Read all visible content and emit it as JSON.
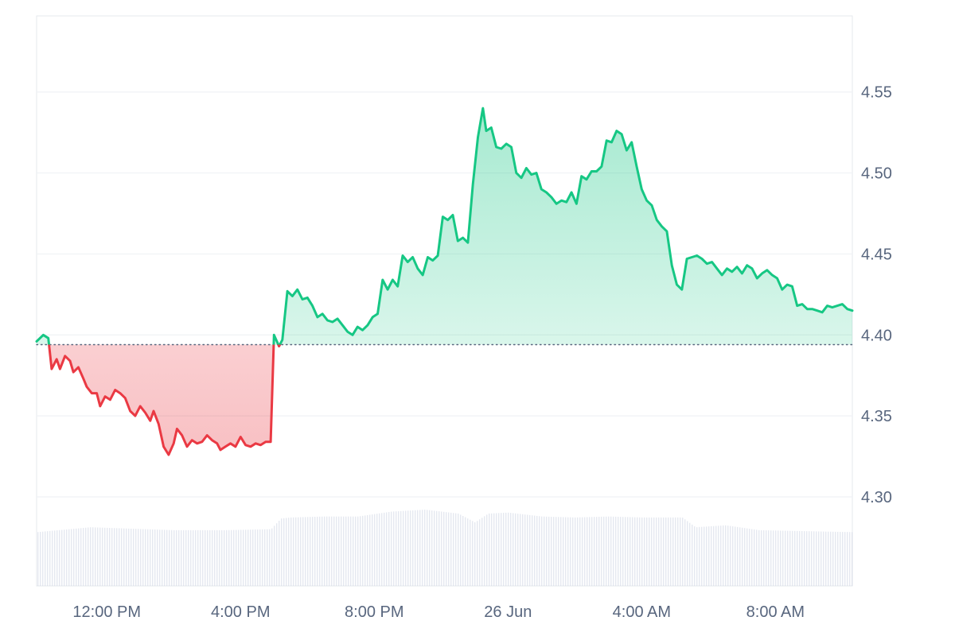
{
  "chart_data": {
    "type": "area",
    "baseline": 4.394,
    "ylim": [
      4.245,
      4.597
    ],
    "y_ticks": [
      {
        "value": 4.3,
        "label": "4.30"
      },
      {
        "value": 4.35,
        "label": "4.35"
      },
      {
        "value": 4.4,
        "label": "4.40"
      },
      {
        "value": 4.45,
        "label": "4.45"
      },
      {
        "value": 4.5,
        "label": "4.50"
      },
      {
        "value": 4.55,
        "label": "4.55"
      }
    ],
    "x_range_hours": [
      9.9,
      34.3
    ],
    "x_ticks": [
      {
        "hour": 12,
        "label": "12:00 PM"
      },
      {
        "hour": 16,
        "label": "4:00 PM"
      },
      {
        "hour": 20,
        "label": "8:00 PM"
      },
      {
        "hour": 24,
        "label": "26 Jun"
      },
      {
        "hour": 28,
        "label": "4:00 AM"
      },
      {
        "hour": 32,
        "label": "8:00 AM"
      }
    ],
    "price_points": [
      [
        9.9,
        4.396
      ],
      [
        10.1,
        4.4
      ],
      [
        10.25,
        4.398
      ],
      [
        10.35,
        4.379
      ],
      [
        10.5,
        4.385
      ],
      [
        10.6,
        4.379
      ],
      [
        10.75,
        4.387
      ],
      [
        10.9,
        4.384
      ],
      [
        11.0,
        4.377
      ],
      [
        11.15,
        4.38
      ],
      [
        11.3,
        4.373
      ],
      [
        11.4,
        4.368
      ],
      [
        11.55,
        4.364
      ],
      [
        11.7,
        4.364
      ],
      [
        11.8,
        4.356
      ],
      [
        11.95,
        4.362
      ],
      [
        12.1,
        4.36
      ],
      [
        12.25,
        4.366
      ],
      [
        12.4,
        4.364
      ],
      [
        12.55,
        4.361
      ],
      [
        12.7,
        4.353
      ],
      [
        12.85,
        4.35
      ],
      [
        13.0,
        4.356
      ],
      [
        13.15,
        4.352
      ],
      [
        13.3,
        4.347
      ],
      [
        13.4,
        4.353
      ],
      [
        13.55,
        4.345
      ],
      [
        13.7,
        4.331
      ],
      [
        13.85,
        4.326
      ],
      [
        14.0,
        4.333
      ],
      [
        14.1,
        4.342
      ],
      [
        14.25,
        4.338
      ],
      [
        14.4,
        4.331
      ],
      [
        14.55,
        4.335
      ],
      [
        14.7,
        4.333
      ],
      [
        14.85,
        4.334
      ],
      [
        15.0,
        4.338
      ],
      [
        15.15,
        4.335
      ],
      [
        15.3,
        4.333
      ],
      [
        15.4,
        4.329
      ],
      [
        15.55,
        4.331
      ],
      [
        15.7,
        4.333
      ],
      [
        15.85,
        4.331
      ],
      [
        16.0,
        4.337
      ],
      [
        16.15,
        4.332
      ],
      [
        16.3,
        4.331
      ],
      [
        16.45,
        4.333
      ],
      [
        16.6,
        4.332
      ],
      [
        16.75,
        4.334
      ],
      [
        16.9,
        4.334
      ],
      [
        17.0,
        4.4
      ],
      [
        17.15,
        4.393
      ],
      [
        17.25,
        4.397
      ],
      [
        17.4,
        4.427
      ],
      [
        17.55,
        4.424
      ],
      [
        17.7,
        4.428
      ],
      [
        17.85,
        4.422
      ],
      [
        18.0,
        4.423
      ],
      [
        18.15,
        4.418
      ],
      [
        18.3,
        4.411
      ],
      [
        18.45,
        4.413
      ],
      [
        18.6,
        4.409
      ],
      [
        18.75,
        4.408
      ],
      [
        18.9,
        4.41
      ],
      [
        19.05,
        4.406
      ],
      [
        19.2,
        4.402
      ],
      [
        19.35,
        4.4
      ],
      [
        19.5,
        4.405
      ],
      [
        19.65,
        4.403
      ],
      [
        19.8,
        4.406
      ],
      [
        19.95,
        4.411
      ],
      [
        20.1,
        4.413
      ],
      [
        20.25,
        4.434
      ],
      [
        20.4,
        4.428
      ],
      [
        20.55,
        4.434
      ],
      [
        20.7,
        4.43
      ],
      [
        20.85,
        4.449
      ],
      [
        21.0,
        4.445
      ],
      [
        21.15,
        4.448
      ],
      [
        21.3,
        4.441
      ],
      [
        21.45,
        4.437
      ],
      [
        21.6,
        4.448
      ],
      [
        21.75,
        4.446
      ],
      [
        21.9,
        4.449
      ],
      [
        22.05,
        4.473
      ],
      [
        22.2,
        4.471
      ],
      [
        22.35,
        4.474
      ],
      [
        22.5,
        4.458
      ],
      [
        22.65,
        4.46
      ],
      [
        22.8,
        4.457
      ],
      [
        22.95,
        4.493
      ],
      [
        23.1,
        4.522
      ],
      [
        23.25,
        4.54
      ],
      [
        23.35,
        4.526
      ],
      [
        23.5,
        4.528
      ],
      [
        23.65,
        4.516
      ],
      [
        23.8,
        4.515
      ],
      [
        23.95,
        4.518
      ],
      [
        24.1,
        4.516
      ],
      [
        24.25,
        4.5
      ],
      [
        24.4,
        4.497
      ],
      [
        24.55,
        4.503
      ],
      [
        24.7,
        4.499
      ],
      [
        24.85,
        4.5
      ],
      [
        25.0,
        4.49
      ],
      [
        25.15,
        4.488
      ],
      [
        25.3,
        4.485
      ],
      [
        25.45,
        4.481
      ],
      [
        25.6,
        4.483
      ],
      [
        25.75,
        4.482
      ],
      [
        25.9,
        4.488
      ],
      [
        26.05,
        4.481
      ],
      [
        26.2,
        4.498
      ],
      [
        26.35,
        4.496
      ],
      [
        26.5,
        4.501
      ],
      [
        26.65,
        4.501
      ],
      [
        26.8,
        4.504
      ],
      [
        26.95,
        4.52
      ],
      [
        27.1,
        4.519
      ],
      [
        27.25,
        4.526
      ],
      [
        27.4,
        4.524
      ],
      [
        27.55,
        4.514
      ],
      [
        27.7,
        4.519
      ],
      [
        27.85,
        4.504
      ],
      [
        28.0,
        4.49
      ],
      [
        28.15,
        4.483
      ],
      [
        28.3,
        4.48
      ],
      [
        28.45,
        4.471
      ],
      [
        28.6,
        4.467
      ],
      [
        28.75,
        4.464
      ],
      [
        28.9,
        4.443
      ],
      [
        29.05,
        4.431
      ],
      [
        29.2,
        4.428
      ],
      [
        29.35,
        4.447
      ],
      [
        29.5,
        4.448
      ],
      [
        29.65,
        4.449
      ],
      [
        29.8,
        4.447
      ],
      [
        29.95,
        4.444
      ],
      [
        30.1,
        4.445
      ],
      [
        30.25,
        4.441
      ],
      [
        30.4,
        4.437
      ],
      [
        30.55,
        4.441
      ],
      [
        30.7,
        4.439
      ],
      [
        30.85,
        4.442
      ],
      [
        31.0,
        4.438
      ],
      [
        31.15,
        4.443
      ],
      [
        31.3,
        4.441
      ],
      [
        31.45,
        4.435
      ],
      [
        31.6,
        4.438
      ],
      [
        31.75,
        4.44
      ],
      [
        31.9,
        4.437
      ],
      [
        32.05,
        4.435
      ],
      [
        32.2,
        4.428
      ],
      [
        32.35,
        4.431
      ],
      [
        32.5,
        4.43
      ],
      [
        32.65,
        4.418
      ],
      [
        32.8,
        4.419
      ],
      [
        32.95,
        4.416
      ],
      [
        33.1,
        4.416
      ],
      [
        33.25,
        4.415
      ],
      [
        33.4,
        4.414
      ],
      [
        33.55,
        4.418
      ],
      [
        33.7,
        4.417
      ],
      [
        33.85,
        4.418
      ],
      [
        34.0,
        4.419
      ],
      [
        34.15,
        4.416
      ],
      [
        34.3,
        4.415
      ]
    ],
    "volume_knots": [
      [
        9.9,
        0.55
      ],
      [
        11.5,
        0.6
      ],
      [
        14.0,
        0.57
      ],
      [
        15.5,
        0.57
      ],
      [
        16.9,
        0.58
      ],
      [
        17.2,
        0.69
      ],
      [
        17.5,
        0.7
      ],
      [
        18.5,
        0.71
      ],
      [
        19.5,
        0.71
      ],
      [
        20.5,
        0.76
      ],
      [
        21.5,
        0.78
      ],
      [
        22.5,
        0.74
      ],
      [
        23.0,
        0.65
      ],
      [
        23.4,
        0.74
      ],
      [
        24.0,
        0.75
      ],
      [
        25.0,
        0.71
      ],
      [
        26.0,
        0.7
      ],
      [
        27.0,
        0.71
      ],
      [
        28.0,
        0.7
      ],
      [
        29.2,
        0.7
      ],
      [
        29.6,
        0.6
      ],
      [
        30.5,
        0.62
      ],
      [
        31.5,
        0.57
      ],
      [
        34.3,
        0.55
      ]
    ],
    "grid": "horizontal",
    "colors": {
      "up_line": "#16c784",
      "up_fill": "#16c784",
      "down_line": "#ea3943",
      "down_fill": "#ea3943",
      "baseline_dots": "#58667e",
      "grid": "#eff2f5",
      "axis_text": "#58667e",
      "volume": "#cfd6e4"
    }
  }
}
